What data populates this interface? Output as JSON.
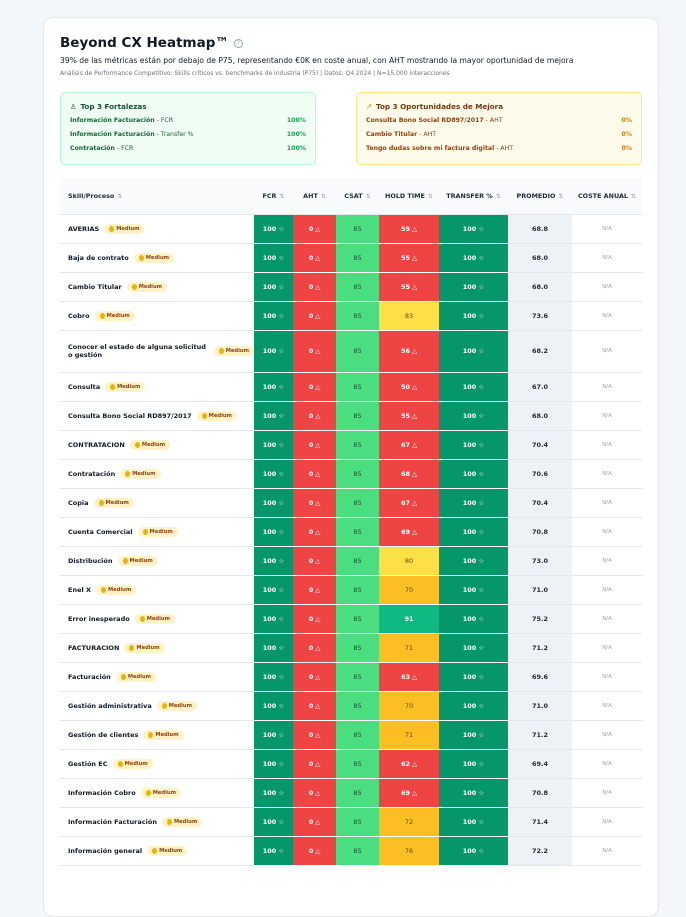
{
  "header": {
    "title": "Beyond CX Heatmap™",
    "help_icon": "?",
    "subtitle": "39% de las métricas están por debajo de P75, representando €0K en coste anual, con AHT mostrando la mayor oportunidad de mejora",
    "meta": "Análisis de Performance Competitivo: Skills críticos vs. benchmarks de industria (P75) | Datos: Q4 2024 | N=15,000 interacciones"
  },
  "strengths": {
    "title": "Top 3 Fortalezas",
    "icon": "award-icon",
    "items": [
      {
        "skill": "Información Facturación",
        "metric": " - FCR",
        "value": "100%"
      },
      {
        "skill": "Información Facturación",
        "metric": " - Transfer %",
        "value": "100%"
      },
      {
        "skill": "Contratación",
        "metric": " - FCR",
        "value": "100%"
      }
    ]
  },
  "opportunities": {
    "title": "Top 3 Oportunidades de Mejora",
    "icon": "trending-up-icon",
    "items": [
      {
        "skill": "Consulta Bono Social RD897/2017",
        "metric": " - AHT",
        "value": "0%"
      },
      {
        "skill": "Cambio Titular",
        "metric": " - AHT",
        "value": "0%"
      },
      {
        "skill": "Tengo dudas sobre mi factura digital",
        "metric": " - AHT",
        "value": "0%"
      }
    ]
  },
  "table": {
    "columns": [
      "Skill/Proceso",
      "FCR",
      "AHT",
      "CSAT",
      "HOLD TIME",
      "TRANSFER %",
      "PROMEDIO",
      "COSTE ANUAL"
    ],
    "sort_icon": "⇅",
    "badge": "Medium",
    "na": "N/A",
    "rows": [
      {
        "name": "AVERIAS",
        "fcr": 100,
        "aht": 0,
        "csat": 85,
        "hold": 59,
        "transfer": 100,
        "avg": "68.8"
      },
      {
        "name": "Baja de contrato",
        "fcr": 100,
        "aht": 0,
        "csat": 85,
        "hold": 55,
        "transfer": 100,
        "avg": "68.0"
      },
      {
        "name": "Cambio Titular",
        "fcr": 100,
        "aht": 0,
        "csat": 85,
        "hold": 55,
        "transfer": 100,
        "avg": "68.0"
      },
      {
        "name": "Cobro",
        "fcr": 100,
        "aht": 0,
        "csat": 85,
        "hold": 83,
        "transfer": 100,
        "avg": "73.6"
      },
      {
        "name": "Conocer el estado de alguna solicitud o gestión",
        "fcr": 100,
        "aht": 0,
        "csat": 85,
        "hold": 56,
        "transfer": 100,
        "avg": "68.2"
      },
      {
        "name": "Consulta",
        "fcr": 100,
        "aht": 0,
        "csat": 85,
        "hold": 50,
        "transfer": 100,
        "avg": "67.0"
      },
      {
        "name": "Consulta Bono Social RD897/2017",
        "fcr": 100,
        "aht": 0,
        "csat": 85,
        "hold": 55,
        "transfer": 100,
        "avg": "68.0"
      },
      {
        "name": "CONTRATACION",
        "fcr": 100,
        "aht": 0,
        "csat": 85,
        "hold": 67,
        "transfer": 100,
        "avg": "70.4"
      },
      {
        "name": "Contratación",
        "fcr": 100,
        "aht": 0,
        "csat": 85,
        "hold": 68,
        "transfer": 100,
        "avg": "70.6"
      },
      {
        "name": "Copia",
        "fcr": 100,
        "aht": 0,
        "csat": 85,
        "hold": 67,
        "transfer": 100,
        "avg": "70.4"
      },
      {
        "name": "Cuenta Comercial",
        "fcr": 100,
        "aht": 0,
        "csat": 85,
        "hold": 69,
        "transfer": 100,
        "avg": "70.8"
      },
      {
        "name": "Distribución",
        "fcr": 100,
        "aht": 0,
        "csat": 85,
        "hold": 80,
        "transfer": 100,
        "avg": "73.0"
      },
      {
        "name": "Enel X",
        "fcr": 100,
        "aht": 0,
        "csat": 85,
        "hold": 70,
        "transfer": 100,
        "avg": "71.0"
      },
      {
        "name": "Error inesperado",
        "fcr": 100,
        "aht": 0,
        "csat": 85,
        "hold": 91,
        "transfer": 100,
        "avg": "75.2"
      },
      {
        "name": "FACTURACION",
        "fcr": 100,
        "aht": 0,
        "csat": 85,
        "hold": 71,
        "transfer": 100,
        "avg": "71.2"
      },
      {
        "name": "Facturación",
        "fcr": 100,
        "aht": 0,
        "csat": 85,
        "hold": 63,
        "transfer": 100,
        "avg": "69.6"
      },
      {
        "name": "Gestión administrativa",
        "fcr": 100,
        "aht": 0,
        "csat": 85,
        "hold": 70,
        "transfer": 100,
        "avg": "71.0"
      },
      {
        "name": "Gestión de clientes",
        "fcr": 100,
        "aht": 0,
        "csat": 85,
        "hold": 71,
        "transfer": 100,
        "avg": "71.2"
      },
      {
        "name": "Gestión EC",
        "fcr": 100,
        "aht": 0,
        "csat": 85,
        "hold": 62,
        "transfer": 100,
        "avg": "69.4"
      },
      {
        "name": "Información Cobro",
        "fcr": 100,
        "aht": 0,
        "csat": 85,
        "hold": 69,
        "transfer": 100,
        "avg": "70.8"
      },
      {
        "name": "Información Facturación",
        "fcr": 100,
        "aht": 0,
        "csat": 85,
        "hold": 72,
        "transfer": 100,
        "avg": "71.4"
      },
      {
        "name": "Información general",
        "fcr": 100,
        "aht": 0,
        "csat": 85,
        "hold": 76,
        "transfer": 100,
        "avg": "72.2"
      }
    ]
  }
}
